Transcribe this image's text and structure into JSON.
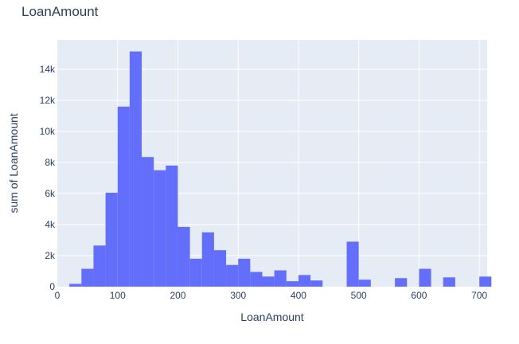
{
  "chart_data": {
    "type": "bar",
    "title": "LoanAmount",
    "xlabel": "LoanAmount",
    "ylabel": "sum of LoanAmount",
    "xlim": [
      0,
      713
    ],
    "ylim": [
      0,
      15900
    ],
    "grid": true,
    "bin_width": 20,
    "x_ticks": [
      {
        "value": 0,
        "label": "0"
      },
      {
        "value": 100,
        "label": "100"
      },
      {
        "value": 200,
        "label": "200"
      },
      {
        "value": 300,
        "label": "300"
      },
      {
        "value": 400,
        "label": "400"
      },
      {
        "value": 500,
        "label": "500"
      },
      {
        "value": 600,
        "label": "600"
      },
      {
        "value": 700,
        "label": "700"
      }
    ],
    "y_ticks": [
      {
        "value": 0,
        "label": "0"
      },
      {
        "value": 2000,
        "label": "2k"
      },
      {
        "value": 4000,
        "label": "4k"
      },
      {
        "value": 6000,
        "label": "6k"
      },
      {
        "value": 8000,
        "label": "8k"
      },
      {
        "value": 10000,
        "label": "10k"
      },
      {
        "value": 12000,
        "label": "12k"
      },
      {
        "value": 14000,
        "label": "14k"
      }
    ],
    "bin_starts": [
      20,
      40,
      60,
      80,
      100,
      120,
      140,
      160,
      180,
      200,
      220,
      240,
      260,
      280,
      300,
      320,
      340,
      360,
      380,
      400,
      420,
      480,
      500,
      560,
      600,
      640,
      700
    ],
    "values": [
      180,
      1150,
      2650,
      6050,
      11600,
      15150,
      8350,
      7500,
      7800,
      3850,
      1800,
      3500,
      2350,
      1400,
      1800,
      950,
      650,
      1050,
      350,
      750,
      400,
      2900,
      450,
      550,
      1150,
      600,
      650
    ],
    "bar_color": "#636efa",
    "plot_bg": "#e5ecf6",
    "grid_color": "#ffffff"
  }
}
